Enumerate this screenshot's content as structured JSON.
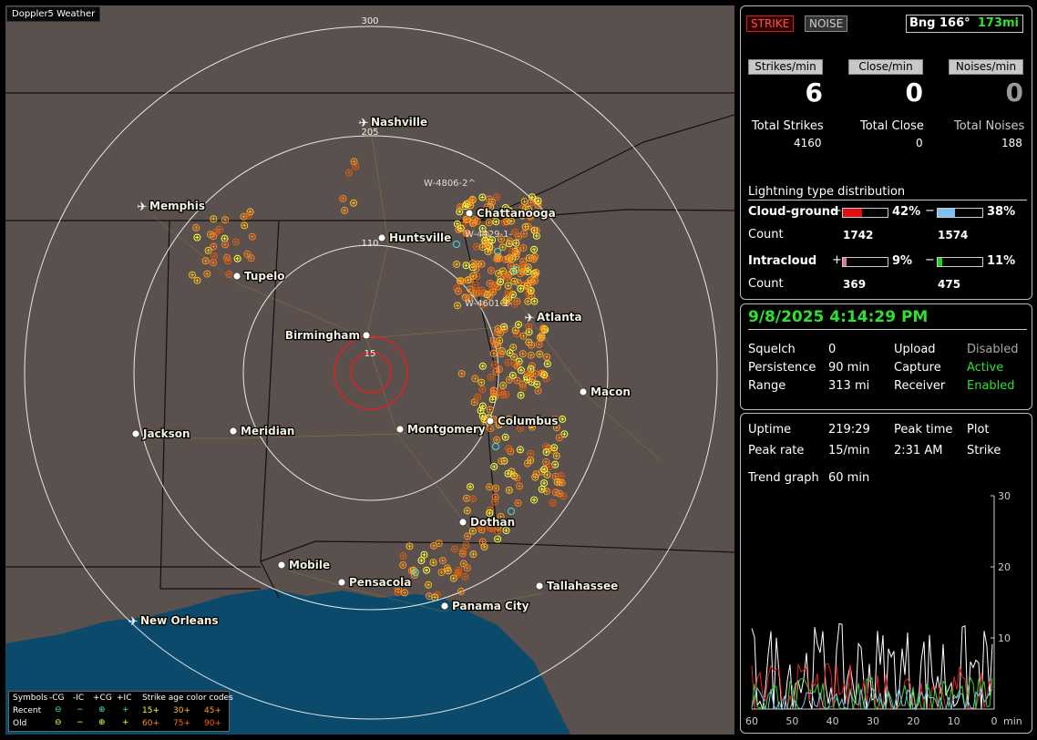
{
  "app_title": "Doppler5 Weather",
  "map": {
    "ring_labels": [
      "300",
      "205",
      "110",
      "15"
    ],
    "cities": [
      {
        "name": "Nashville",
        "type": "airport"
      },
      {
        "name": "Memphis",
        "type": "airport"
      },
      {
        "name": "Chattanooga",
        "type": "city"
      },
      {
        "name": "Huntsville",
        "type": "city"
      },
      {
        "name": "Tupelo",
        "type": "city"
      },
      {
        "name": "Atlanta",
        "type": "airport"
      },
      {
        "name": "Birmingham",
        "type": "city"
      },
      {
        "name": "Macon",
        "type": "city"
      },
      {
        "name": "Columbus",
        "type": "city"
      },
      {
        "name": "Jackson",
        "type": "city"
      },
      {
        "name": "Meridian",
        "type": "city"
      },
      {
        "name": "Montgomery",
        "type": "city"
      },
      {
        "name": "Dothan",
        "type": "city"
      },
      {
        "name": "Mobile",
        "type": "city"
      },
      {
        "name": "Pensacola",
        "type": "city"
      },
      {
        "name": "Tallahassee",
        "type": "city"
      },
      {
        "name": "Panama City",
        "type": "city"
      },
      {
        "name": "New Orleans",
        "type": "airport"
      }
    ],
    "storm_tags": [
      "W-4806-2^",
      "W-4429-1-",
      "W-4601-1-"
    ],
    "legend": {
      "row_symbols": "Symbols",
      "row_recent": "Recent",
      "row_old": "Old",
      "headers": [
        "-CG",
        "-IC",
        "+CG",
        "+IC"
      ],
      "age_title": "Strike age color codes",
      "recent_ages": [
        "15+",
        "30+",
        "45+"
      ],
      "old_ages": [
        "60+",
        "75+",
        "90+"
      ],
      "age_colors_recent": [
        "#ffff40",
        "#ffc020",
        "#ff9a20"
      ],
      "age_colors_old": [
        "#ff8a20",
        "#ff7010",
        "#ff5a10"
      ]
    }
  },
  "top_panel": {
    "strike_btn": "STRIKE",
    "noise_btn": "NOISE",
    "bearing": "Bng 166°",
    "distance": "173mi",
    "rate_labels": [
      "Strikes/min",
      "Close/min",
      "Noises/min"
    ],
    "rate_values": [
      "6",
      "0",
      "0"
    ],
    "total_labels": [
      "Total Strikes",
      "Total Close",
      "Total Noises"
    ],
    "total_values": [
      "4160",
      "0",
      "188"
    ],
    "dist_title": "Lightning type distribution",
    "cg_label": "Cloud-ground",
    "ic_label": "Intracloud",
    "count_label": "Count",
    "plus": "+",
    "minus": "−",
    "cg_plus_pct": "42%",
    "cg_minus_pct": "38%",
    "ic_plus_pct": "9%",
    "ic_minus_pct": "11%",
    "cg_plus_count": "1742",
    "cg_minus_count": "1574",
    "ic_plus_count": "369",
    "ic_minus_count": "475",
    "bar_levels": {
      "cg_plus": 0.42,
      "cg_minus": 0.38,
      "ic_plus": 0.09,
      "ic_minus": 0.11
    },
    "bar_colors": {
      "cg_plus": "#e01010",
      "cg_minus": "#80c0f0",
      "ic_plus": "#e070b0",
      "ic_minus": "#20d020"
    }
  },
  "status_panel": {
    "datetime": "9/8/2025 4:14:29 PM",
    "rows": [
      [
        "Squelch",
        "0",
        "Upload",
        "Disabled"
      ],
      [
        "Persistence",
        "90 min",
        "Capture",
        "Active"
      ],
      [
        "Range",
        "313 mi",
        "Receiver",
        "Enabled"
      ]
    ]
  },
  "trend_panel": {
    "uptime_label": "Uptime",
    "uptime_value": "219:29",
    "peak_time_label": "Peak time",
    "plot_label": "Plot",
    "peak_rate_label": "Peak rate",
    "peak_rate_value": "15/min",
    "peak_time_value": "2:31 AM",
    "plot_value": "Strike",
    "trend_label": "Trend graph",
    "trend_value": "60 min",
    "y_ticks": [
      "30",
      "20",
      "10"
    ],
    "x_ticks": [
      "60",
      "50",
      "40",
      "30",
      "20",
      "10",
      "0"
    ],
    "x_unit": "min"
  }
}
